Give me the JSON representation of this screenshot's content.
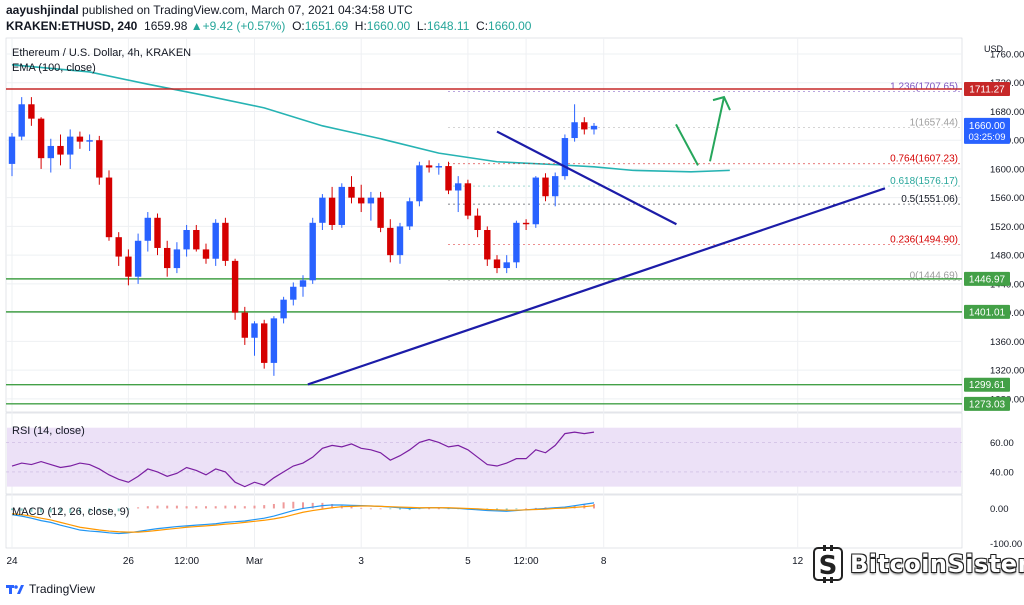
{
  "header": {
    "author": "aayushjindal",
    "published_text": "published on TradingView.com, March 07, 2021 04:34:58 UTC",
    "symbol": "KRAKEN:ETHUSD, 240",
    "last": "1659.98",
    "change": "+9.42 (+0.57%)",
    "o_label": "O:",
    "o_val": "1651.69",
    "h_label": "H:",
    "h_val": "1660.00",
    "l_label": "L:",
    "l_val": "1648.11",
    "c_label": "C:",
    "c_val": "1660.00"
  },
  "footer": {
    "tradingview": "TradingView"
  },
  "watermark": {
    "text": "BitcoinSistemi"
  },
  "colors": {
    "bull": "#2962ff",
    "bear": "#d50000",
    "ema": "#26b3b3",
    "trendline": "#1c1ca8",
    "resistance": "#c62828",
    "support": "#43a047",
    "rsi_bg": "#ece1f7",
    "rsi_line": "#7b1fa2",
    "macd_line": "#2196f3",
    "signal_line": "#ff9800",
    "fib": "#9e9e9e",
    "arrow": "#26a65b"
  },
  "chart_data": [
    {
      "type": "candlestick",
      "title": "Ethereum / U.S. Dollar, 4h, KRAKEN",
      "indicator": "EMA (100, close)",
      "currency_label": "USD",
      "ylim": [
        1270,
        1760
      ],
      "yticks": [
        "1760.00",
        "1720.00",
        "1680.00",
        "1640.00",
        "1600.00",
        "1560.00",
        "1520.00",
        "1480.00",
        "1440.00",
        "1400.00",
        "1360.00",
        "1320.00",
        "1280.00"
      ],
      "xticks": [
        {
          "label": "24",
          "i": 0
        },
        {
          "label": "26",
          "i": 12
        },
        {
          "label": "12:00",
          "i": 18
        },
        {
          "label": "Mar",
          "i": 25
        },
        {
          "label": "3",
          "i": 36
        },
        {
          "label": "5",
          "i": 47
        },
        {
          "label": "12:00",
          "i": 53
        },
        {
          "label": "8",
          "i": 61
        },
        {
          "label": "12",
          "i": 81
        }
      ],
      "candles": [
        [
          1607,
          1650,
          1590,
          1645
        ],
        [
          1645,
          1700,
          1640,
          1690
        ],
        [
          1690,
          1700,
          1660,
          1670
        ],
        [
          1670,
          1672,
          1600,
          1615
        ],
        [
          1615,
          1642,
          1595,
          1632
        ],
        [
          1632,
          1648,
          1605,
          1620
        ],
        [
          1620,
          1655,
          1600,
          1645
        ],
        [
          1645,
          1652,
          1628,
          1638
        ],
        [
          1638,
          1648,
          1625,
          1640
        ],
        [
          1640,
          1646,
          1578,
          1588
        ],
        [
          1588,
          1598,
          1500,
          1505
        ],
        [
          1505,
          1512,
          1465,
          1478
        ],
        [
          1478,
          1488,
          1438,
          1450
        ],
        [
          1450,
          1510,
          1440,
          1500
        ],
        [
          1500,
          1540,
          1485,
          1532
        ],
        [
          1532,
          1538,
          1480,
          1490
        ],
        [
          1490,
          1500,
          1450,
          1462
        ],
        [
          1462,
          1498,
          1455,
          1488
        ],
        [
          1488,
          1522,
          1478,
          1515
        ],
        [
          1515,
          1522,
          1485,
          1488
        ],
        [
          1488,
          1496,
          1468,
          1475
        ],
        [
          1475,
          1530,
          1465,
          1525
        ],
        [
          1525,
          1532,
          1465,
          1472
        ],
        [
          1472,
          1475,
          1390,
          1400
        ],
        [
          1400,
          1408,
          1355,
          1365
        ],
        [
          1365,
          1388,
          1340,
          1385
        ],
        [
          1385,
          1390,
          1322,
          1330
        ],
        [
          1330,
          1395,
          1312,
          1392
        ],
        [
          1392,
          1422,
          1385,
          1418
        ],
        [
          1418,
          1442,
          1410,
          1436
        ],
        [
          1436,
          1452,
          1422,
          1445
        ],
        [
          1445,
          1532,
          1440,
          1525
        ],
        [
          1525,
          1565,
          1515,
          1560
        ],
        [
          1560,
          1575,
          1515,
          1522
        ],
        [
          1522,
          1580,
          1518,
          1575
        ],
        [
          1575,
          1590,
          1552,
          1560
        ],
        [
          1560,
          1578,
          1540,
          1552
        ],
        [
          1552,
          1568,
          1528,
          1560
        ],
        [
          1560,
          1568,
          1512,
          1518
        ],
        [
          1518,
          1530,
          1470,
          1480
        ],
        [
          1480,
          1525,
          1468,
          1520
        ],
        [
          1520,
          1560,
          1515,
          1555
        ],
        [
          1555,
          1610,
          1548,
          1605
        ],
        [
          1605,
          1612,
          1595,
          1602
        ],
        [
          1602,
          1608,
          1592,
          1604
        ],
        [
          1604,
          1610,
          1565,
          1570
        ],
        [
          1570,
          1590,
          1540,
          1580
        ],
        [
          1580,
          1585,
          1530,
          1535
        ],
        [
          1535,
          1545,
          1505,
          1515
        ],
        [
          1515,
          1520,
          1465,
          1474
        ],
        [
          1474,
          1480,
          1455,
          1462
        ],
        [
          1462,
          1480,
          1455,
          1470
        ],
        [
          1470,
          1528,
          1462,
          1525
        ],
        [
          1525,
          1530,
          1515,
          1523
        ],
        [
          1523,
          1590,
          1518,
          1588
        ],
        [
          1588,
          1594,
          1555,
          1562
        ],
        [
          1562,
          1595,
          1548,
          1590
        ],
        [
          1590,
          1648,
          1585,
          1643
        ],
        [
          1643,
          1690,
          1638,
          1665
        ],
        [
          1665,
          1672,
          1648,
          1655
        ],
        [
          1655,
          1664,
          1648,
          1660
        ]
      ],
      "ema_100": [
        [
          0,
          1745
        ],
        [
          8,
          1735
        ],
        [
          14,
          1718
        ],
        [
          20,
          1702
        ],
        [
          26,
          1685
        ],
        [
          32,
          1660
        ],
        [
          38,
          1642
        ],
        [
          44,
          1622
        ],
        [
          50,
          1610
        ],
        [
          56,
          1606
        ],
        [
          60,
          1603
        ],
        [
          64,
          1598
        ],
        [
          70,
          1596
        ],
        [
          74,
          1598
        ]
      ],
      "trendlines": [
        {
          "name": "rising support",
          "from": [
            30.5,
            1300
          ],
          "to": [
            90,
            1573
          ]
        },
        {
          "name": "declining resistance",
          "from": [
            50,
            1652
          ],
          "to": [
            68.5,
            1523
          ]
        }
      ],
      "horizontal_levels": [
        {
          "value": "1711.27",
          "color": "#c62828",
          "label_bg": "#c62828"
        },
        {
          "value": "1446.97",
          "color": "#43a047",
          "label_bg": "#43a047"
        },
        {
          "value": "1401.01",
          "color": "#43a047",
          "label_bg": "#43a047"
        },
        {
          "value": "1299.61",
          "color": "#43a047",
          "label_bg": "#43a047"
        },
        {
          "value": "1273.03",
          "color": "#43a047",
          "label_bg": "#43a047"
        }
      ],
      "fibonacci": [
        {
          "label": "1.236(1707.65)",
          "value": 1707.65,
          "color": "#7e57c2"
        },
        {
          "label": "1(1657.44)",
          "value": 1657.44,
          "color": "#9e9e9e"
        },
        {
          "label": "0.764(1607.23)",
          "value": 1607.23,
          "color": "#d50000"
        },
        {
          "label": "0.618(1576.17)",
          "value": 1576.17,
          "color": "#26a69a"
        },
        {
          "label": "0.5(1551.06)",
          "value": 1551.06,
          "color": "#131722"
        },
        {
          "label": "0.236(1494.90)",
          "value": 1494.9,
          "color": "#d50000"
        },
        {
          "label": "0(1444.69)",
          "value": 1444.69,
          "color": "#9e9e9e"
        }
      ],
      "price_label": {
        "value": "1660.00",
        "countdown": "03:25:09"
      }
    },
    {
      "type": "line",
      "title": "RSI (14, close)",
      "ylim": [
        25,
        80
      ],
      "yticks": [
        "60.00",
        "40.00"
      ],
      "values": [
        44,
        46,
        45,
        47,
        45,
        43,
        44,
        46,
        45,
        42,
        38,
        35,
        33,
        37,
        42,
        40,
        37,
        39,
        43,
        41,
        38,
        42,
        40,
        33,
        30,
        33,
        31,
        36,
        40,
        44,
        46,
        50,
        56,
        58,
        57,
        59,
        56,
        55,
        53,
        48,
        51,
        55,
        60,
        62,
        60,
        57,
        58,
        55,
        50,
        45,
        44,
        46,
        49,
        49,
        55,
        53,
        58,
        66,
        67,
        66,
        67
      ]
    },
    {
      "type": "line",
      "title": "MACD (12, 26, close, 9)",
      "ylim": [
        -105,
        30
      ],
      "yticks": [
        "0.00",
        "-100.00"
      ],
      "macd": [
        -18,
        -22,
        -28,
        -35,
        -40,
        -48,
        -55,
        -62,
        -65,
        -67,
        -70,
        -72,
        -70,
        -66,
        -62,
        -58,
        -55,
        -52,
        -50,
        -48,
        -46,
        -44,
        -40,
        -38,
        -36,
        -32,
        -28,
        -22,
        -14,
        -6,
        0,
        4,
        8,
        10,
        10,
        9,
        8,
        7,
        6,
        4,
        2,
        0,
        1,
        2,
        2,
        1,
        0,
        -2,
        -4,
        -6,
        -7,
        -8,
        -6,
        -4,
        -2,
        0,
        2,
        4,
        8,
        12,
        16
      ],
      "signal": [
        -15,
        -18,
        -22,
        -28,
        -33,
        -40,
        -47,
        -54,
        -58,
        -62,
        -65,
        -67,
        -68,
        -68,
        -66,
        -63,
        -60,
        -57,
        -54,
        -52,
        -50,
        -48,
        -45,
        -43,
        -40,
        -37,
        -34,
        -30,
        -25,
        -18,
        -11,
        -6,
        -2,
        2,
        5,
        6,
        7,
        7,
        6,
        5,
        4,
        3,
        2,
        2,
        2,
        2,
        1,
        0,
        -1,
        -3,
        -4,
        -5,
        -5,
        -4,
        -3,
        -2,
        0,
        1,
        3,
        5,
        8
      ]
    }
  ]
}
